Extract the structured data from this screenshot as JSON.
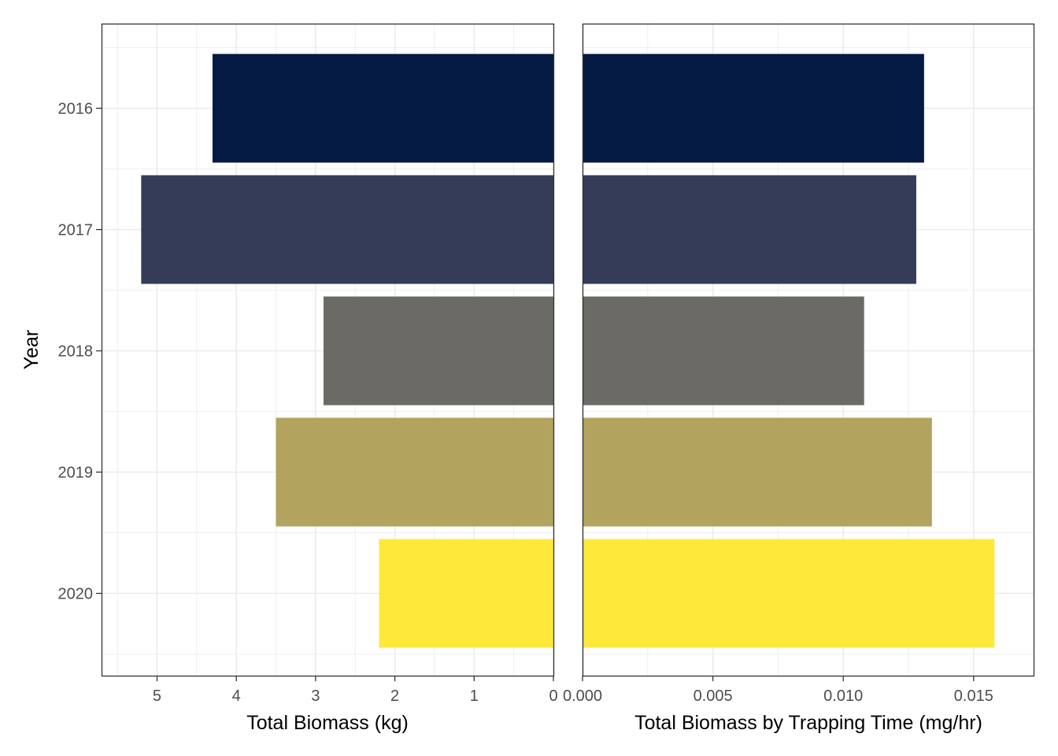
{
  "chart_data": [
    {
      "type": "bar",
      "orientation": "horizontal",
      "x_reversed": true,
      "categories": [
        "2016",
        "2017",
        "2018",
        "2019",
        "2020"
      ],
      "values": [
        4.3,
        5.2,
        2.9,
        3.5,
        2.2
      ],
      "colors": [
        "#041A42",
        "#343C58",
        "#6B6A65",
        "#B2A35E",
        "#FEE83A"
      ],
      "xlabel": "Total Biomass (kg)",
      "ylabel": "Year",
      "xlim": [
        5.7,
        0
      ],
      "xticks": [
        "5",
        "4",
        "3",
        "2",
        "1",
        "0"
      ],
      "grid": true
    },
    {
      "type": "bar",
      "orientation": "horizontal",
      "categories": [
        "2016",
        "2017",
        "2018",
        "2019",
        "2020"
      ],
      "values": [
        0.0131,
        0.0128,
        0.0108,
        0.0134,
        0.0158
      ],
      "colors": [
        "#041A42",
        "#343C58",
        "#6B6A65",
        "#B2A35E",
        "#FEE83A"
      ],
      "xlabel": "Total Biomass by Trapping Time (mg/hr)",
      "xlim": [
        0,
        0.0173
      ],
      "xticks": [
        "0.000",
        "0.005",
        "0.010",
        "0.015"
      ],
      "grid": true
    }
  ]
}
